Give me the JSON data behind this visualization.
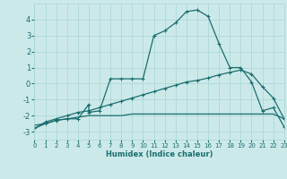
{
  "xlabel": "Humidex (Indice chaleur)",
  "xlim": [
    0,
    23
  ],
  "ylim": [
    -3.5,
    5.0
  ],
  "yticks": [
    -3,
    -2,
    -1,
    0,
    1,
    2,
    3,
    4
  ],
  "xticks": [
    0,
    1,
    2,
    3,
    4,
    5,
    6,
    7,
    8,
    9,
    10,
    11,
    12,
    13,
    14,
    15,
    16,
    17,
    18,
    19,
    20,
    21,
    22,
    23
  ],
  "bg_color": "#cce9e9",
  "grid_color": "#a8d4d4",
  "line_color": "#1a6e6e",
  "line1_x": [
    0,
    1,
    2,
    3,
    4,
    5,
    5,
    6,
    7,
    8,
    9,
    10,
    11,
    12,
    13,
    14,
    15,
    16,
    17,
    18,
    19,
    20,
    21,
    22,
    23
  ],
  "line1_y": [
    -2.8,
    -2.5,
    -2.3,
    -2.2,
    -2.2,
    -1.3,
    -1.8,
    -1.7,
    0.3,
    0.3,
    0.3,
    0.3,
    3.0,
    3.3,
    3.8,
    4.5,
    4.6,
    4.2,
    2.5,
    1.0,
    1.0,
    0.1,
    -1.7,
    -1.5,
    -2.7
  ],
  "line2_x": [
    0,
    1,
    2,
    3,
    4,
    5,
    6,
    7,
    8,
    9,
    10,
    11,
    12,
    13,
    14,
    15,
    16,
    17,
    18,
    19,
    20,
    21,
    22,
    23
  ],
  "line2_y": [
    -2.8,
    -2.4,
    -2.2,
    -2.0,
    -1.8,
    -1.7,
    -1.5,
    -1.3,
    -1.1,
    -0.9,
    -0.7,
    -0.5,
    -0.3,
    -0.1,
    0.1,
    0.2,
    0.35,
    0.55,
    0.7,
    0.85,
    0.6,
    -0.2,
    -0.9,
    -2.2
  ],
  "line3_x": [
    0,
    1,
    2,
    3,
    4,
    5,
    6,
    7,
    8,
    9,
    10,
    11,
    12,
    13,
    14,
    15,
    16,
    17,
    18,
    19,
    20,
    21,
    22,
    23
  ],
  "line3_y": [
    -2.6,
    -2.5,
    -2.3,
    -2.2,
    -2.1,
    -2.0,
    -2.0,
    -2.0,
    -2.0,
    -1.9,
    -1.9,
    -1.9,
    -1.9,
    -1.9,
    -1.9,
    -1.9,
    -1.9,
    -1.9,
    -1.9,
    -1.9,
    -1.9,
    -1.9,
    -1.9,
    -2.2
  ]
}
